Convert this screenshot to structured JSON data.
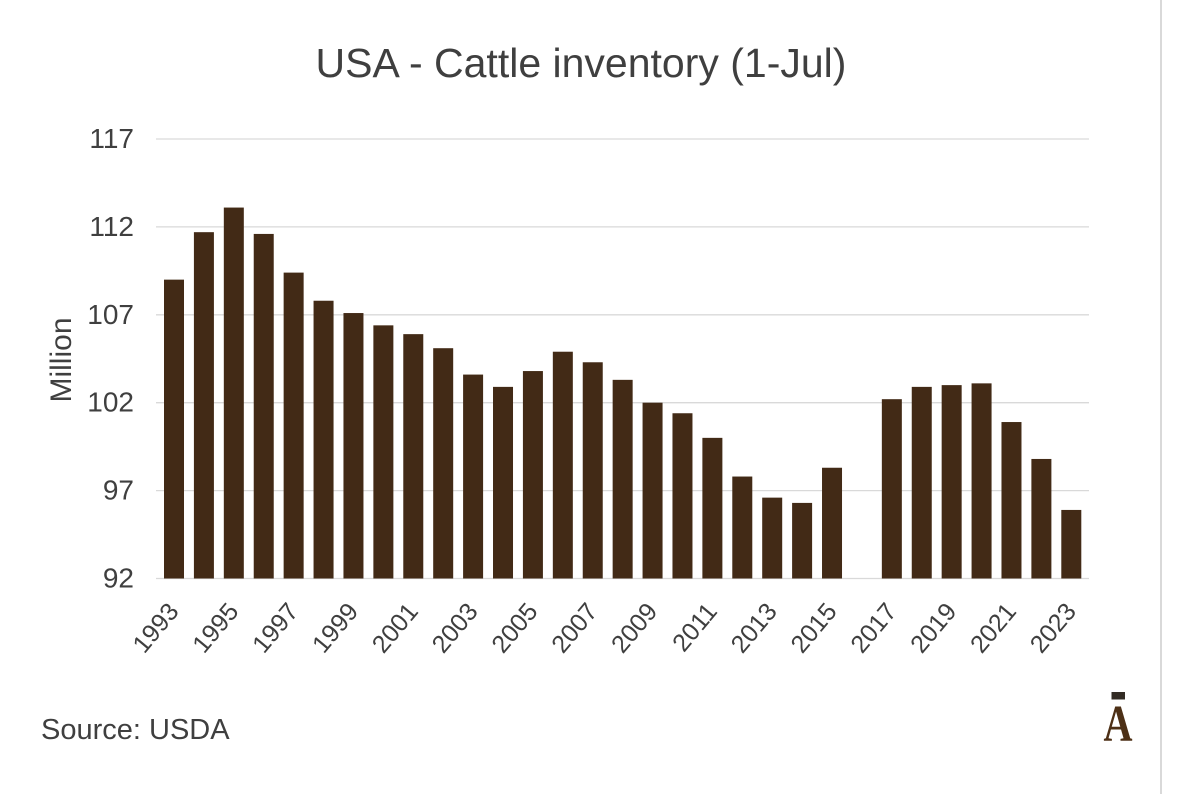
{
  "chart_data": {
    "type": "bar",
    "title": "USA - Cattle inventory (1-Jul)",
    "ylabel": "Million",
    "xlabel": "",
    "source_label": "Source: USDA",
    "logo_text": "Ā",
    "ylim": [
      92,
      117
    ],
    "yticks": [
      92,
      97,
      102,
      107,
      112,
      117
    ],
    "xticks": [
      1993,
      1995,
      1997,
      1999,
      2001,
      2003,
      2005,
      2007,
      2009,
      2011,
      2013,
      2015,
      2017,
      2019,
      2021,
      2023
    ],
    "grid": true,
    "legend": "none",
    "categories": [
      1993,
      1994,
      1995,
      1996,
      1997,
      1998,
      1999,
      2000,
      2001,
      2002,
      2003,
      2004,
      2005,
      2006,
      2007,
      2008,
      2009,
      2010,
      2011,
      2012,
      2013,
      2014,
      2015,
      2016,
      2017,
      2018,
      2019,
      2020,
      2021,
      2022,
      2023
    ],
    "values": [
      109.0,
      111.7,
      113.1,
      111.6,
      109.4,
      107.8,
      107.1,
      106.4,
      105.9,
      105.1,
      103.6,
      102.9,
      103.8,
      104.9,
      104.3,
      103.3,
      102.0,
      101.4,
      100.0,
      97.8,
      96.6,
      96.3,
      98.3,
      null,
      102.2,
      102.9,
      103.0,
      103.1,
      100.9,
      98.8,
      95.9
    ],
    "colors": {
      "bar": "#422a16",
      "text": "#3f3f3f",
      "gridline": "#d9d9d9",
      "border": "#d9d9d9",
      "logo": "#4a2f17",
      "background": "#ffffff"
    }
  }
}
